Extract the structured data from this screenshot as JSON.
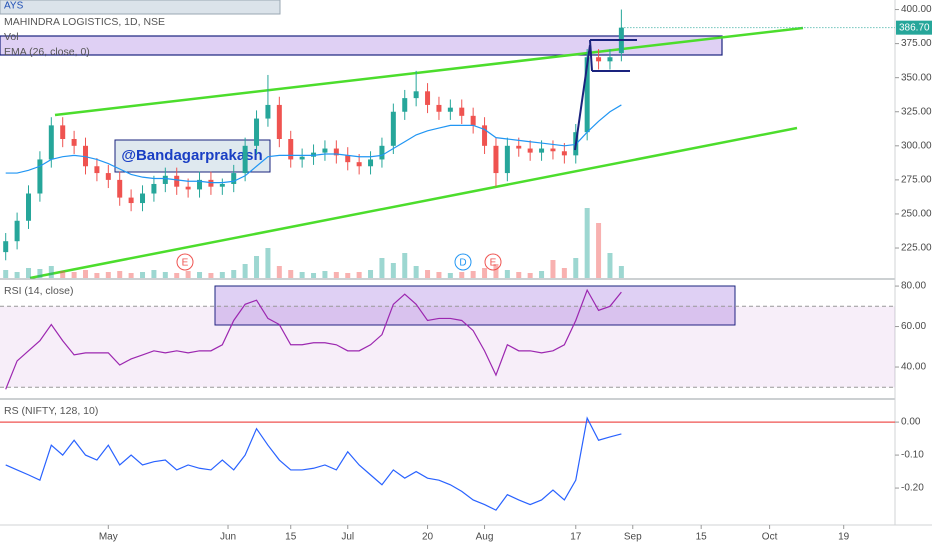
{
  "header": "AYS",
  "watermark": "@Bandagarprakash",
  "events": [
    "E",
    "D",
    "E"
  ],
  "chart_data": [
    {
      "type": "candlestick",
      "title": "MAHINDRA LOGISTICS, 1D, NSE",
      "x": [
        1,
        3,
        5,
        7,
        9,
        11,
        13,
        15,
        17,
        19,
        21,
        23,
        25,
        27,
        29,
        31,
        33,
        35,
        37,
        39,
        41,
        43,
        45,
        47,
        49,
        51,
        53,
        55,
        57,
        59,
        61,
        63,
        65,
        67,
        69,
        71,
        73,
        75,
        77,
        79,
        81,
        83,
        85,
        87,
        89,
        91,
        93,
        95,
        97,
        99,
        101,
        103,
        105,
        107,
        109
      ],
      "open": [
        222,
        230,
        245,
        265,
        290,
        315,
        305,
        300,
        285,
        280,
        275,
        262,
        258,
        265,
        272,
        278,
        270,
        268,
        275,
        270,
        272,
        280,
        300,
        320,
        330,
        305,
        290,
        292,
        295,
        298,
        293,
        288,
        285,
        290,
        300,
        325,
        335,
        340,
        330,
        325,
        328,
        322,
        315,
        300,
        280,
        300,
        298,
        295,
        298,
        296,
        293,
        310,
        365,
        362,
        368
      ],
      "high": [
        236,
        251,
        271,
        296,
        321,
        321,
        311,
        306,
        291,
        286,
        281,
        268,
        271,
        278,
        284,
        284,
        276,
        281,
        281,
        276,
        286,
        306,
        326,
        352,
        336,
        311,
        298,
        301,
        304,
        304,
        299,
        294,
        296,
        306,
        331,
        341,
        355,
        346,
        336,
        334,
        334,
        328,
        321,
        306,
        306,
        306,
        304,
        304,
        304,
        302,
        316,
        371,
        371,
        371,
        400
      ],
      "low": [
        216,
        224,
        239,
        259,
        284,
        299,
        294,
        279,
        274,
        269,
        256,
        252,
        252,
        259,
        266,
        264,
        262,
        262,
        264,
        264,
        266,
        274,
        294,
        314,
        299,
        284,
        284,
        286,
        289,
        287,
        282,
        279,
        279,
        284,
        294,
        319,
        329,
        324,
        319,
        319,
        316,
        309,
        294,
        270,
        274,
        292,
        289,
        289,
        290,
        287,
        287,
        304,
        356,
        356,
        362
      ],
      "close": [
        230,
        245,
        265,
        290,
        315,
        305,
        300,
        285,
        280,
        275,
        262,
        258,
        265,
        272,
        278,
        270,
        268,
        275,
        270,
        272,
        280,
        300,
        320,
        330,
        305,
        290,
        292,
        295,
        298,
        293,
        288,
        285,
        290,
        300,
        325,
        335,
        340,
        330,
        325,
        328,
        322,
        315,
        300,
        280,
        300,
        298,
        295,
        298,
        296,
        293,
        310,
        365,
        362,
        365,
        386.7
      ],
      "volume_label": "Vol",
      "volume": [
        8,
        6,
        10,
        9,
        12,
        7,
        6,
        8,
        5,
        6,
        7,
        5,
        6,
        8,
        6,
        5,
        7,
        6,
        5,
        6,
        8,
        14,
        22,
        30,
        12,
        8,
        6,
        5,
        7,
        6,
        5,
        6,
        8,
        20,
        15,
        25,
        12,
        8,
        6,
        5,
        6,
        7,
        10,
        14,
        8,
        6,
        5,
        7,
        18,
        10,
        20,
        70,
        55,
        25,
        12
      ],
      "up_color": "#26a69a",
      "down_color": "#ef5350",
      "ema": {
        "name": "EMA (26, close, 0)",
        "color": "#2196f3",
        "values": [
          280,
          280,
          282,
          285,
          290,
          292,
          293,
          292,
          290,
          287,
          283,
          279,
          277,
          276,
          276,
          275,
          274,
          274,
          273,
          273,
          274,
          278,
          285,
          292,
          293,
          293,
          293,
          293,
          294,
          294,
          293,
          292,
          292,
          293,
          298,
          303,
          308,
          311,
          313,
          315,
          315,
          315,
          312,
          306,
          305,
          304,
          303,
          302,
          301,
          300,
          301,
          310,
          318,
          325,
          330
        ]
      },
      "last_value": 386.7,
      "last_value_label": "386.70",
      "xlim": [
        0,
        157
      ],
      "ylim": [
        203,
        407
      ],
      "yticks": [
        {
          "value": 225,
          "label": "225.00"
        },
        {
          "value": 250,
          "label": "250.00"
        },
        {
          "value": 275,
          "label": "275.00"
        },
        {
          "value": 300,
          "label": "300.00"
        },
        {
          "value": 325,
          "label": "325.00"
        },
        {
          "value": 350,
          "label": "350.00"
        },
        {
          "value": 375,
          "label": "375.00"
        },
        {
          "value": 400,
          "label": "400.00"
        }
      ]
    },
    {
      "type": "line",
      "title": "RSI (14, close)",
      "color": "#9c27b0",
      "x": [
        1,
        3,
        5,
        7,
        9,
        11,
        13,
        15,
        17,
        19,
        21,
        23,
        25,
        27,
        29,
        31,
        33,
        35,
        37,
        39,
        41,
        43,
        45,
        47,
        49,
        51,
        53,
        55,
        57,
        59,
        61,
        63,
        65,
        67,
        69,
        71,
        73,
        75,
        77,
        79,
        81,
        83,
        85,
        87,
        89,
        91,
        93,
        95,
        97,
        99,
        101,
        103,
        105,
        107,
        109
      ],
      "values": [
        29,
        43,
        48,
        53,
        61,
        53,
        46,
        47,
        47,
        47,
        41,
        44,
        46,
        48,
        47,
        48,
        47,
        48,
        48,
        51,
        63,
        71,
        73,
        64,
        61,
        51,
        51,
        52,
        52,
        51,
        48,
        48,
        51,
        56,
        71,
        76,
        71,
        63,
        64,
        64,
        63,
        58,
        48,
        36,
        51,
        48,
        48,
        47,
        48,
        51,
        63,
        78,
        68,
        70,
        77
      ],
      "bands": [
        30,
        70
      ],
      "band_color": "#9c27b0",
      "xlim": [
        0,
        157
      ],
      "ylim": [
        24.7,
        83
      ],
      "yticks": [
        {
          "value": 40,
          "label": "40.00"
        },
        {
          "value": 60,
          "label": "60.00"
        },
        {
          "value": 80,
          "label": "80.00"
        }
      ]
    },
    {
      "type": "line",
      "title": "RS (NIFTY, 128, 10)",
      "color": "#2962ff",
      "x": [
        1,
        3,
        5,
        7,
        9,
        11,
        13,
        15,
        17,
        19,
        21,
        23,
        25,
        27,
        29,
        31,
        33,
        35,
        37,
        39,
        41,
        43,
        45,
        47,
        49,
        51,
        53,
        55,
        57,
        59,
        61,
        63,
        65,
        67,
        69,
        71,
        73,
        75,
        77,
        79,
        81,
        83,
        85,
        87,
        89,
        91,
        93,
        95,
        97,
        99,
        101,
        103,
        105,
        107,
        109
      ],
      "values": [
        -0.13,
        -0.145,
        -0.16,
        -0.176,
        -0.07,
        -0.1,
        -0.055,
        -0.1,
        -0.115,
        -0.07,
        -0.13,
        -0.1,
        -0.13,
        -0.12,
        -0.115,
        -0.145,
        -0.13,
        -0.14,
        -0.145,
        -0.115,
        -0.145,
        -0.1,
        -0.02,
        -0.07,
        -0.115,
        -0.145,
        -0.145,
        -0.14,
        -0.13,
        -0.145,
        -0.09,
        -0.13,
        -0.16,
        -0.19,
        -0.145,
        -0.17,
        -0.15,
        -0.17,
        -0.176,
        -0.19,
        -0.21,
        -0.236,
        -0.25,
        -0.267,
        -0.22,
        -0.236,
        -0.25,
        -0.236,
        -0.206,
        -0.236,
        -0.176,
        0.012,
        -0.055,
        -0.045,
        -0.036
      ],
      "hline": 0,
      "hline_color": "#ef5350",
      "xlim": [
        0,
        157
      ],
      "ylim": [
        -0.312,
        0.067
      ],
      "yticks": [
        {
          "value": 0,
          "label": "0.00"
        },
        {
          "value": -0.1,
          "label": "-0.10"
        },
        {
          "value": -0.2,
          "label": "-0.20"
        }
      ],
      "xticks": [
        {
          "value": 19,
          "label": "May"
        },
        {
          "value": 40,
          "label": "Jun"
        },
        {
          "value": 51,
          "label": "15"
        },
        {
          "value": 61,
          "label": "Jul"
        },
        {
          "value": 75,
          "label": "20"
        },
        {
          "value": 85,
          "label": "Aug"
        },
        {
          "value": 101,
          "label": "17"
        },
        {
          "value": 111,
          "label": "Sep"
        },
        {
          "value": 123,
          "label": "15"
        },
        {
          "value": 135,
          "label": "Oct"
        },
        {
          "value": 148,
          "label": "19"
        }
      ]
    }
  ]
}
